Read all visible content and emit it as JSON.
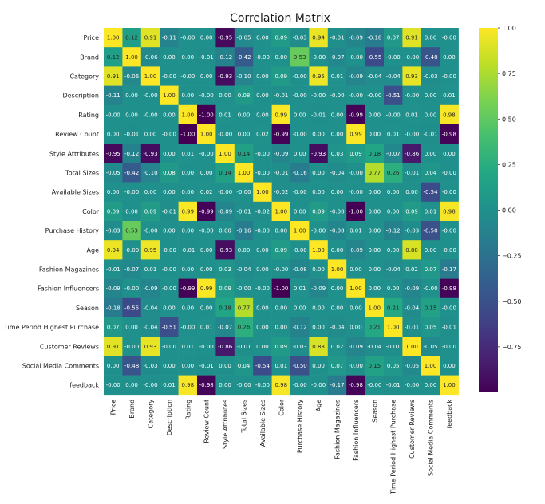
{
  "chart_data": {
    "type": "heatmap",
    "title": "Correlation Matrix",
    "xlabel": "",
    "ylabel": "",
    "colormap": "viridis",
    "vmin": -1.0,
    "vmax": 1.0,
    "colorbar_ticks": [
      "1.00",
      "0.75",
      "0.50",
      "0.25",
      "0.00",
      "−0.25",
      "−0.50",
      "−0.75"
    ],
    "colorbar_tick_values": [
      1.0,
      0.75,
      0.5,
      0.25,
      0.0,
      -0.25,
      -0.5,
      -0.75
    ],
    "labels": [
      "Price",
      "Brand",
      "Category",
      "Description",
      "Rating",
      "Review Count",
      "Style Attributes",
      "Total Sizes",
      "Available Sizes",
      "Color",
      "Purchase History",
      "Age",
      "Fashion Magazines",
      "Fashion Influencers",
      "Season",
      "Time Period Highest Purchase",
      "Customer Reviews",
      "Social Media Comments",
      "feedback"
    ],
    "cells": [
      [
        "1.00",
        "0.12",
        "0.91",
        "-0.11",
        "-0.00",
        "0.00",
        "-0.95",
        "-0.05",
        "0.00",
        "0.09",
        "-0.03",
        "0.94",
        "-0.01",
        "-0.09",
        "-0.18",
        "0.07",
        "0.91",
        "0.00",
        "-0.00"
      ],
      [
        "0.12",
        "1.00",
        "-0.06",
        "0.00",
        "0.00",
        "-0.01",
        "-0.12",
        "-0.42",
        "-0.00",
        "0.00",
        "0.53",
        "-0.00",
        "-0.07",
        "-0.00",
        "-0.55",
        "-0.00",
        "-0.00",
        "-0.48",
        "0.00"
      ],
      [
        "0.91",
        "-0.06",
        "1.00",
        "-0.00",
        "-0.00",
        "0.00",
        "-0.93",
        "-0.10",
        "0.00",
        "0.09",
        "-0.00",
        "0.95",
        "0.01",
        "-0.09",
        "-0.04",
        "-0.04",
        "0.93",
        "-0.03",
        "-0.00"
      ],
      [
        "-0.11",
        "0.00",
        "-0.00",
        "1.00",
        "0.00",
        "-0.00",
        "0.00",
        "0.08",
        "0.00",
        "-0.01",
        "-0.00",
        "-0.00",
        "-0.00",
        "-0.00",
        "-0.00",
        "-0.51",
        "-0.00",
        "0.00",
        "0.01"
      ],
      [
        "-0.00",
        "0.00",
        "-0.00",
        "0.00",
        "1.00",
        "-1.00",
        "0.01",
        "0.00",
        "0.00",
        "0.99",
        "0.00",
        "-0.01",
        "0.00",
        "-0.99",
        "0.00",
        "-0.00",
        "0.01",
        "0.00",
        "0.98"
      ],
      [
        "0.00",
        "-0.01",
        "0.00",
        "-0.00",
        "-1.00",
        "1.00",
        "-0.00",
        "0.00",
        "0.02",
        "-0.99",
        "-0.00",
        "0.00",
        "0.00",
        "0.99",
        "0.00",
        "0.01",
        "-0.00",
        "-0.01",
        "-0.98"
      ],
      [
        "-0.95",
        "-0.12",
        "-0.93",
        "0.00",
        "0.01",
        "-0.00",
        "1.00",
        "0.14",
        "-0.00",
        "-0.09",
        "0.00",
        "-0.93",
        "0.03",
        "0.09",
        "0.18",
        "-0.07",
        "-0.86",
        "0.00",
        "0.00"
      ],
      [
        "-0.05",
        "-0.42",
        "-0.10",
        "0.08",
        "0.00",
        "0.00",
        "0.14",
        "1.00",
        "-0.00",
        "-0.01",
        "-0.16",
        "0.00",
        "-0.04",
        "-0.00",
        "0.77",
        "0.26",
        "-0.01",
        "0.04",
        "-0.00"
      ],
      [
        "0.00",
        "-0.00",
        "0.00",
        "0.00",
        "0.00",
        "0.02",
        "-0.00",
        "-0.00",
        "1.00",
        "-0.02",
        "-0.00",
        "0.00",
        "0.00",
        "-0.00",
        "0.00",
        "0.00",
        "0.00",
        "-0.54",
        "-0.00"
      ],
      [
        "0.09",
        "0.00",
        "0.09",
        "-0.01",
        "0.99",
        "-0.99",
        "-0.09",
        "-0.01",
        "-0.02",
        "1.00",
        "0.00",
        "0.09",
        "-0.00",
        "-1.00",
        "0.00",
        "0.00",
        "0.09",
        "0.01",
        "0.98"
      ],
      [
        "-0.03",
        "0.53",
        "-0.00",
        "0.00",
        "0.00",
        "-0.00",
        "0.00",
        "-0.16",
        "-0.00",
        "0.00",
        "1.00",
        "-0.00",
        "-0.08",
        "0.01",
        "0.00",
        "-0.12",
        "-0.03",
        "-0.50",
        "-0.00"
      ],
      [
        "0.94",
        "-0.00",
        "0.95",
        "-0.00",
        "-0.01",
        "0.00",
        "-0.93",
        "0.00",
        "0.00",
        "0.09",
        "-0.00",
        "1.00",
        "0.00",
        "-0.09",
        "0.00",
        "0.00",
        "0.88",
        "0.00",
        "-0.00"
      ],
      [
        "-0.01",
        "-0.07",
        "0.01",
        "-0.00",
        "0.00",
        "0.00",
        "0.03",
        "-0.04",
        "0.00",
        "-0.00",
        "-0.08",
        "0.00",
        "1.00",
        "0.00",
        "0.00",
        "-0.04",
        "0.02",
        "0.07",
        "-0.17"
      ],
      [
        "-0.09",
        "-0.00",
        "-0.09",
        "-0.00",
        "-0.99",
        "0.99",
        "0.09",
        "-0.00",
        "-0.00",
        "-1.00",
        "0.01",
        "-0.09",
        "0.00",
        "1.00",
        "0.00",
        "0.00",
        "-0.09",
        "-0.00",
        "-0.98"
      ],
      [
        "-0.18",
        "-0.55",
        "-0.04",
        "0.00",
        "0.00",
        "0.00",
        "0.18",
        "0.77",
        "0.00",
        "0.00",
        "0.00",
        "0.00",
        "0.00",
        "0.00",
        "1.00",
        "0.21",
        "-0.04",
        "0.15",
        "-0.00"
      ],
      [
        "0.07",
        "0.00",
        "-0.04",
        "-0.51",
        "-0.00",
        "0.01",
        "-0.07",
        "0.26",
        "0.00",
        "0.00",
        "-0.12",
        "0.00",
        "-0.04",
        "0.00",
        "0.21",
        "1.00",
        "-0.01",
        "0.05",
        "-0.01"
      ],
      [
        "0.91",
        "-0.00",
        "0.93",
        "-0.00",
        "0.01",
        "-0.00",
        "-0.86",
        "-0.01",
        "0.00",
        "0.09",
        "-0.03",
        "0.88",
        "0.02",
        "-0.09",
        "-0.04",
        "-0.01",
        "1.00",
        "-0.05",
        "-0.00"
      ],
      [
        "0.00",
        "-0.48",
        "-0.03",
        "0.00",
        "0.00",
        "-0.01",
        "0.00",
        "0.04",
        "-0.54",
        "0.01",
        "-0.50",
        "0.00",
        "0.07",
        "-0.00",
        "0.15",
        "0.05",
        "-0.05",
        "1.00",
        "0.00"
      ],
      [
        "-0.00",
        "0.00",
        "-0.00",
        "0.01",
        "0.98",
        "-0.98",
        "0.00",
        "-0.00",
        "-0.00",
        "0.98",
        "-0.00",
        "-0.00",
        "-0.17",
        "-0.98",
        "-0.00",
        "-0.01",
        "-0.00",
        "0.00",
        "1.00"
      ]
    ]
  }
}
